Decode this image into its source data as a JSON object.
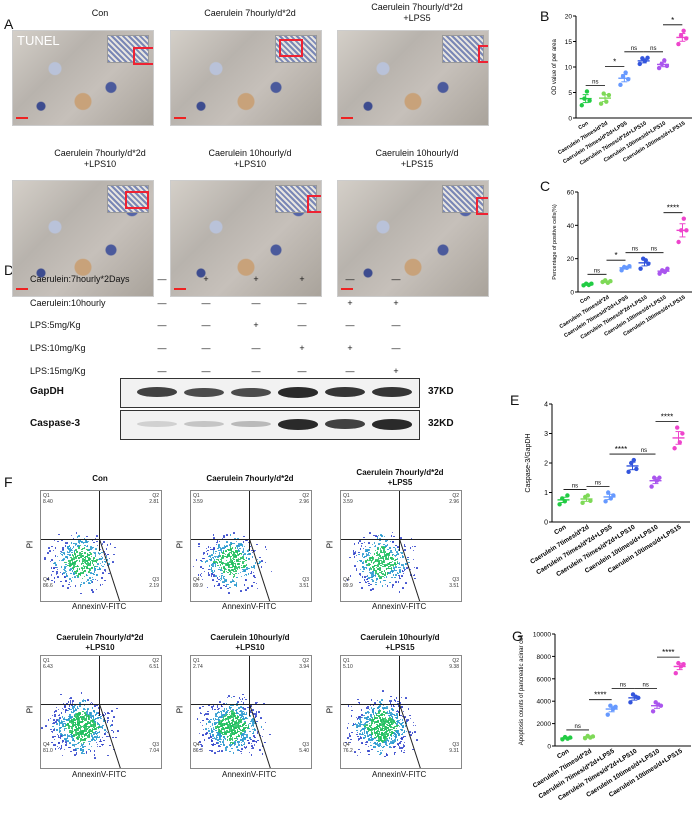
{
  "panels": {
    "A": "A",
    "B": "B",
    "C": "C",
    "D": "D",
    "E": "E",
    "F": "F",
    "G": "G"
  },
  "tunel_label": "TUNEL",
  "micrographs": [
    {
      "title": "Con",
      "l2": ""
    },
    {
      "title": "Caerulein 7hourly/d*2d",
      "l2": ""
    },
    {
      "title": "Caerulein 7hourly/d*2d",
      "l2": "+LPS5"
    },
    {
      "title": "Caerulein 7hourly/d*2d",
      "l2": "+LPS10"
    },
    {
      "title": "Caerulein 10hourly/d",
      "l2": "+LPS10"
    },
    {
      "title": "Caerulein 10hourly/d",
      "l2": "+LPS15"
    }
  ],
  "western": {
    "rows": [
      {
        "label": "Caerulein:7hourly*2Days",
        "signs": [
          "—",
          "+",
          "+",
          "+",
          "—",
          "—"
        ]
      },
      {
        "label": "Caerulein:10hourly",
        "signs": [
          "—",
          "—",
          "—",
          "—",
          "+",
          "+"
        ]
      },
      {
        "label": "LPS:5mg/Kg",
        "signs": [
          "—",
          "—",
          "+",
          "—",
          "—",
          "—"
        ]
      },
      {
        "label": "LPS:10mg/Kg",
        "signs": [
          "—",
          "—",
          "—",
          "+",
          "+",
          "—"
        ]
      },
      {
        "label": "LPS:15mg/Kg",
        "signs": [
          "—",
          "—",
          "—",
          "—",
          "—",
          "+"
        ]
      }
    ],
    "blots": [
      {
        "name": "GapDH",
        "kd": "37KD",
        "intensity": [
          0.8,
          0.75,
          0.75,
          0.9,
          0.85,
          0.85
        ]
      },
      {
        "name": "Caspase-3",
        "kd": "32KD",
        "intensity": [
          0.15,
          0.2,
          0.25,
          0.9,
          0.8,
          0.9
        ]
      }
    ]
  },
  "flow": [
    {
      "title": "Con",
      "l2": "",
      "q1": "Q1",
      "q1v": "8.40",
      "q2": "Q2",
      "q2v": "2.81",
      "q3": "Q3",
      "q3v": "2.19",
      "q4": "Q4",
      "q4v": "86.6"
    },
    {
      "title": "Caerulein 7hourly/d*2d",
      "l2": "",
      "q1": "Q1",
      "q1v": "3.59",
      "q2": "Q2",
      "q2v": "2.96",
      "q3": "Q3",
      "q3v": "3.51",
      "q4": "Q4",
      "q4v": "89.9"
    },
    {
      "title": "Caerulein 7hourly/d*2d",
      "l2": "+LPS5",
      "q1": "Q1",
      "q1v": "3.59",
      "q2": "Q2",
      "q2v": "2.96",
      "q3": "Q3",
      "q3v": "3.51",
      "q4": "Q4",
      "q4v": "89.9"
    },
    {
      "title": "Caerulein 7hourly/d*2d",
      "l2": "+LPS10",
      "q1": "Q1",
      "q1v": "6.43",
      "q2": "Q2",
      "q2v": "6.51",
      "q3": "Q3",
      "q3v": "7.04",
      "q4": "Q4",
      "q4v": "81.0"
    },
    {
      "title": "Caerulein 10hourly/d",
      "l2": "+LPS10",
      "q1": "Q1",
      "q1v": "2.74",
      "q2": "Q2",
      "q2v": "3.94",
      "q3": "Q3",
      "q3v": "5.40",
      "q4": "Q4",
      "q4v": "86.3"
    },
    {
      "title": "Caerulein 10hourly/d",
      "l2": "+LPS15",
      "q1": "Q1",
      "q1v": "5.10",
      "q2": "Q2",
      "q2v": "9.38",
      "q3": "Q3",
      "q3v": "9.31",
      "q4": "Q4",
      "q4v": "76.2"
    }
  ],
  "flow_xlabel": "AnnexinV-FITC",
  "flow_ylabel": "PI",
  "chart_data": [
    {
      "panel": "B",
      "type": "scatter",
      "ylabel": "OD value of per area",
      "ylim": [
        0,
        20
      ],
      "yticks": [
        0,
        5,
        10,
        15,
        20
      ],
      "categories": [
        "Con",
        "Caerulein 7times/d*2d",
        "Caerulein 7times/d*2d+LPS5",
        "Caerulein 7times/d*2d+LPS10",
        "Caerulein 10times/d+LPS10",
        "Caerulein 10times/d+LPS15"
      ],
      "means": [
        3.8,
        3.9,
        7.8,
        11.2,
        10.5,
        15.8
      ],
      "points": [
        [
          2.5,
          3.8,
          5.2,
          3.4
        ],
        [
          2.8,
          4.8,
          3.2,
          4.5
        ],
        [
          6.5,
          8.2,
          8.9,
          7.6
        ],
        [
          10.6,
          11.7,
          11.2,
          11.8
        ],
        [
          9.8,
          10.6,
          11.3,
          10.2
        ],
        [
          14.5,
          16.2,
          17.1,
          15.6
        ]
      ],
      "colors": [
        "#22cc44",
        "#7ed957",
        "#6699ff",
        "#3355dd",
        "#aa55ee",
        "#ee44cc"
      ],
      "sig": [
        {
          "a": 0,
          "b": 1,
          "t": "ns"
        },
        {
          "a": 1,
          "b": 2,
          "t": "*"
        },
        {
          "a": 2,
          "b": 3,
          "t": "ns"
        },
        {
          "a": 3,
          "b": 4,
          "t": "ns"
        },
        {
          "a": 4,
          "b": 5,
          "t": "*"
        }
      ]
    },
    {
      "panel": "C",
      "type": "scatter",
      "ylabel": "Percentage of positive cells(%)",
      "ylim": [
        0,
        60
      ],
      "yticks": [
        0,
        20,
        40,
        60
      ],
      "categories": [
        "Con",
        "Caerulein 7times/d*2d",
        "Caerulein 7times/d*2d+LPS5",
        "Caerulein 7times/d*2d+LPS10",
        "Caerulein 10times/d+LPS10",
        "Caerulein 10times/d+LPS15"
      ],
      "means": [
        4.5,
        6.2,
        14.5,
        17.5,
        12.5,
        37.0
      ],
      "points": [
        [
          4,
          5,
          4.2,
          5
        ],
        [
          6,
          7,
          5.5,
          6.5
        ],
        [
          13,
          15,
          14.5,
          15.5
        ],
        [
          14,
          20,
          19,
          17
        ],
        [
          11,
          13,
          12,
          14
        ],
        [
          30,
          37,
          44,
          37
        ]
      ],
      "colors": [
        "#22cc44",
        "#7ed957",
        "#6699ff",
        "#3355dd",
        "#aa55ee",
        "#ee44cc"
      ],
      "sig": [
        {
          "a": 0,
          "b": 1,
          "t": "ns"
        },
        {
          "a": 1,
          "b": 2,
          "t": "*"
        },
        {
          "a": 2,
          "b": 3,
          "t": "ns"
        },
        {
          "a": 3,
          "b": 4,
          "t": "ns"
        },
        {
          "a": 4,
          "b": 5,
          "t": "****"
        }
      ]
    },
    {
      "panel": "E",
      "type": "scatter",
      "ylabel": "Caspase-3/GapDH",
      "ylim": [
        0,
        4
      ],
      "yticks": [
        0,
        1,
        2,
        3,
        4
      ],
      "categories": [
        "Con",
        "Caerulein 7times/d*2d",
        "Caerulein 7times/d*2d+LPS5",
        "Caerulein 7times/d*2d+LPS10",
        "Caerulein 10times/d+LPS10",
        "Caerulein 10times/d+LPS15"
      ],
      "means": [
        0.75,
        0.78,
        0.85,
        1.9,
        1.4,
        2.85
      ],
      "points": [
        [
          0.6,
          0.8,
          0.7,
          0.9
        ],
        [
          0.65,
          0.85,
          0.9,
          0.72
        ],
        [
          0.7,
          1.0,
          0.8,
          0.9
        ],
        [
          1.7,
          2.0,
          2.1,
          1.8
        ],
        [
          1.2,
          1.5,
          1.4,
          1.5
        ],
        [
          2.5,
          3.2,
          2.7,
          3.0
        ]
      ],
      "colors": [
        "#22cc44",
        "#7ed957",
        "#6699ff",
        "#3355dd",
        "#aa55ee",
        "#ee44cc"
      ],
      "sig": [
        {
          "a": 0,
          "b": 1,
          "t": "ns"
        },
        {
          "a": 1,
          "b": 2,
          "t": "ns"
        },
        {
          "a": 2,
          "b": 3,
          "t": "****"
        },
        {
          "a": 3,
          "b": 4,
          "t": "ns"
        },
        {
          "a": 4,
          "b": 5,
          "t": "****"
        }
      ]
    },
    {
      "panel": "G",
      "type": "scatter",
      "ylabel": "Apoptosis counts of pancreatic acinar cell",
      "ylim": [
        0,
        10000
      ],
      "yticks": [
        0,
        2000,
        4000,
        6000,
        8000,
        10000
      ],
      "categories": [
        "Con",
        "Caerulein 7times/d*2d",
        "Caerulein 7times/d*2d+LPS5",
        "Caerulein 7times/d*2d+LPS10",
        "Caerulein 10times/d+LPS10",
        "Caerulein 10times/d+LPS15"
      ],
      "means": [
        700,
        800,
        3300,
        4300,
        3600,
        7100
      ],
      "points": [
        [
          600,
          800,
          650,
          750
        ],
        [
          700,
          900,
          750,
          850
        ],
        [
          2800,
          3600,
          3300,
          3500
        ],
        [
          3900,
          4600,
          4400,
          4300
        ],
        [
          3100,
          3900,
          3700,
          3600
        ],
        [
          6500,
          7400,
          7100,
          7300
        ]
      ],
      "colors": [
        "#22cc44",
        "#7ed957",
        "#6699ff",
        "#3355dd",
        "#aa55ee",
        "#ee44cc"
      ],
      "sig": [
        {
          "a": 0,
          "b": 1,
          "t": "ns"
        },
        {
          "a": 1,
          "b": 2,
          "t": "****"
        },
        {
          "a": 2,
          "b": 3,
          "t": "ns"
        },
        {
          "a": 3,
          "b": 4,
          "t": "ns"
        },
        {
          "a": 4,
          "b": 5,
          "t": "****"
        }
      ]
    }
  ]
}
